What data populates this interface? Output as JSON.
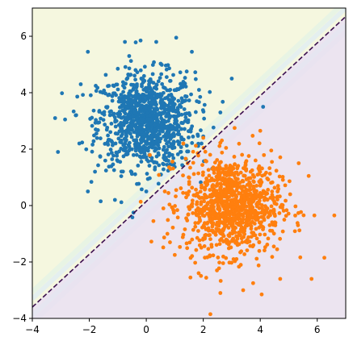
{
  "chart_data": {
    "type": "scatter",
    "title": "",
    "xlabel": "",
    "ylabel": "",
    "xlim": [
      -4,
      7
    ],
    "ylim": [
      -4,
      7
    ],
    "grid": false,
    "legend": "none",
    "x_ticks": [
      -4,
      -2,
      0,
      2,
      4,
      6
    ],
    "y_ticks": [
      -4,
      -2,
      0,
      2,
      4,
      6
    ],
    "x_tick_labels": [
      "−4",
      "−2",
      "0",
      "2",
      "4",
      "6"
    ],
    "y_tick_labels": [
      "−4",
      "−2",
      "0",
      "2",
      "4",
      "6"
    ],
    "decision_boundary": {
      "style": "dashed",
      "color": "#3b0f4f",
      "points": [
        [
          -4,
          -3.6
        ],
        [
          7,
          6.7
        ]
      ]
    },
    "background_regions": [
      {
        "side": "above-boundary",
        "color": "#f5f7df"
      },
      {
        "side": "below-boundary",
        "color": "#ece4f0"
      }
    ],
    "series": [
      {
        "color": "#1f77b4",
        "center": [
          0,
          3
        ],
        "std": [
          0.85,
          0.85
        ],
        "count": 1000,
        "points": [
          [
            -2.05,
            5.45
          ],
          [
            -0.75,
            5.8
          ],
          [
            -0.2,
            5.85
          ],
          [
            0.35,
            5.8
          ],
          [
            1.05,
            5.95
          ],
          [
            -0.6,
            5.3
          ],
          [
            1.6,
            5.45
          ],
          [
            -3.1,
            1.9
          ],
          [
            -3.2,
            3.1
          ],
          [
            -2.85,
            3.05
          ],
          [
            -2.35,
            2.2
          ],
          [
            -2.05,
            0.5
          ],
          [
            -1.6,
            0.15
          ],
          [
            -1.1,
            0.2
          ],
          [
            -0.45,
            -0.25
          ],
          [
            0.0,
            0.5
          ],
          [
            3.0,
            4.5
          ],
          [
            4.1,
            3.5
          ],
          [
            2.6,
            3.3
          ],
          [
            -2.3,
            4.3
          ],
          [
            1.85,
            4.1
          ],
          [
            2.0,
            2.45
          ],
          [
            -1.8,
            1.2
          ],
          [
            1.2,
            1.9
          ],
          [
            0.7,
            1.6
          ]
        ]
      },
      {
        "color": "#ff7f0e",
        "center": [
          3,
          0
        ],
        "std": [
          0.85,
          0.85
        ],
        "count": 1000,
        "points": [
          [
            2.25,
            -3.85
          ],
          [
            3.4,
            -3.0
          ],
          [
            4.05,
            -3.15
          ],
          [
            5.8,
            -2.6
          ],
          [
            6.25,
            -1.85
          ],
          [
            6.6,
            -0.35
          ],
          [
            5.9,
            -0.35
          ],
          [
            5.7,
            1.05
          ],
          [
            5.35,
            1.5
          ],
          [
            1.0,
            -1.75
          ],
          [
            1.55,
            -2.55
          ],
          [
            0.6,
            -0.1
          ],
          [
            0.65,
            0.5
          ],
          [
            1.05,
            0.55
          ],
          [
            0.25,
            -0.55
          ],
          [
            1.45,
            1.5
          ],
          [
            0.85,
            1.3
          ],
          [
            2.0,
            2.4
          ],
          [
            3.1,
            2.75
          ],
          [
            4.0,
            2.65
          ],
          [
            1.3,
            2.2
          ],
          [
            3.75,
            -2.75
          ],
          [
            5.05,
            0.4
          ],
          [
            2.6,
            -3.1
          ],
          [
            4.7,
            -2.6
          ]
        ]
      }
    ]
  }
}
